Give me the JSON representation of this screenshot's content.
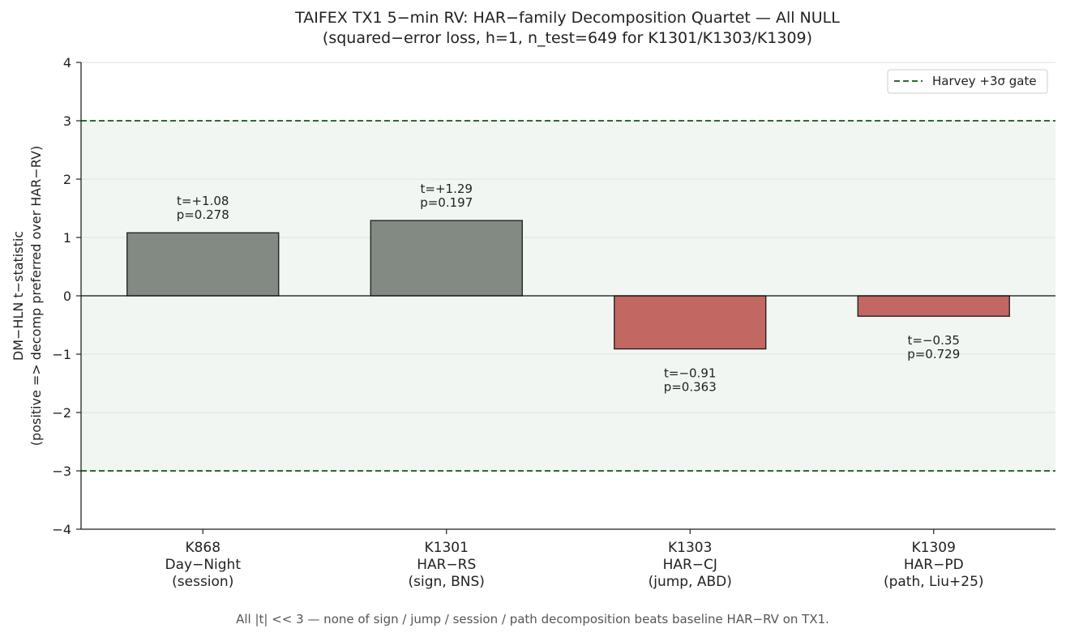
{
  "chart_data": {
    "type": "bar",
    "title_line1": "TAIFEX TX1 5−min RV: HAR−family Decomposition Quartet — All NULL",
    "title_line2": "(squared−error loss, h=1, n_test=649 for K1301/K1303/K1309)",
    "ylabel_line1": "DM−HLN t−statistic",
    "ylabel_line2": "(positive => decomp preferred over HAR−RV)",
    "ylim": [
      -4,
      4
    ],
    "yticks": [
      "−4",
      "−3",
      "−2",
      "−1",
      "0",
      "1",
      "2",
      "3",
      "4"
    ],
    "grid": true,
    "categories": [
      [
        "K868",
        "Day−Night",
        "(session)"
      ],
      [
        "K1301",
        "HAR−RS",
        "(sign, BNS)"
      ],
      [
        "K1303",
        "HAR−CJ",
        "(jump, ABD)"
      ],
      [
        "K1309",
        "HAR−PD",
        "(path, Liu+25)"
      ]
    ],
    "values": [
      1.08,
      1.29,
      -0.91,
      -0.35
    ],
    "labels_t": [
      "t=+1.08",
      "t=+1.29",
      "t=−0.91",
      "t=−0.35"
    ],
    "labels_p": [
      "p=0.278",
      "p=0.197",
      "p=0.363",
      "p=0.729"
    ],
    "gate": 3,
    "legend": {
      "label": "Harvey +3σ gate",
      "position": "top-right"
    },
    "caption": "All |t| << 3 — none of sign / jump / session / path decomposition beats baseline HAR−RV on TX1.",
    "colors": {
      "positive_bar": "#838a83",
      "negative_bar": "#c26762",
      "gate_line": "#2e6b34",
      "band_fill": "#f1f6f2"
    }
  }
}
